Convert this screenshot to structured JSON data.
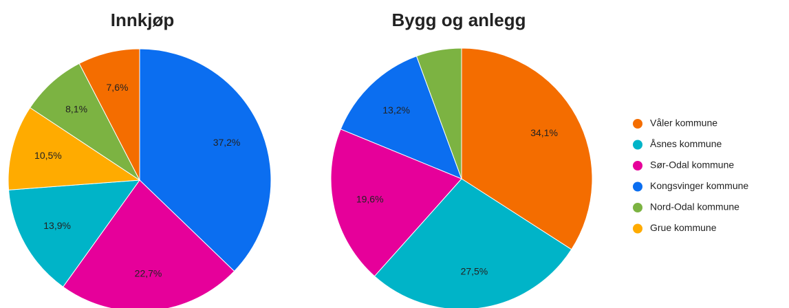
{
  "chart_data": [
    {
      "type": "pie",
      "title": "Innkjøp",
      "values": [
        37.2,
        22.7,
        13.9,
        10.5,
        8.1,
        7.6
      ],
      "value_labels": [
        "37,2%",
        "22,7%",
        "13,9%",
        "10,5%",
        "8,1%",
        "7,6%"
      ],
      "colors": [
        "#0b6ef0",
        "#e6009a",
        "#00b4c8",
        "#ffab00",
        "#7cb342",
        "#f46d00"
      ]
    },
    {
      "type": "pie",
      "title": "Bygg og anlegg",
      "values": [
        34.1,
        27.5,
        19.6,
        13.2,
        5.6
      ],
      "value_labels": [
        "34,1%",
        "27,5%",
        "19,6%",
        "13,2%",
        null
      ],
      "colors": [
        "#f46d00",
        "#00b4c8",
        "#e6009a",
        "#0b6ef0",
        "#7cb342"
      ]
    }
  ],
  "legend": {
    "labels": [
      "Våler kommune",
      "Åsnes kommune",
      "Sør-Odal kommune",
      "Kongsvinger kommune",
      "Nord-Odal kommune",
      "Grue kommune"
    ],
    "colors": [
      "#f46d00",
      "#00b4c8",
      "#e6009a",
      "#0b6ef0",
      "#7cb342",
      "#ffab00"
    ]
  }
}
